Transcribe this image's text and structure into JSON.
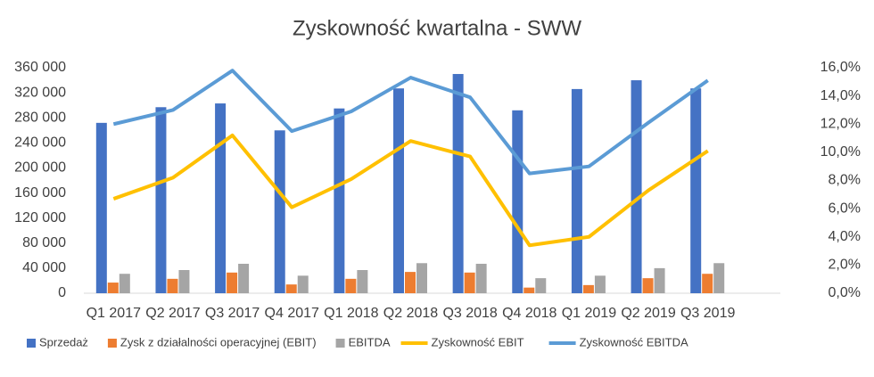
{
  "chart_data": {
    "type": "bar_line",
    "title": "Zyskowność kwartalna - SWW",
    "categories": [
      "Q1 2017",
      "Q2 2017",
      "Q3 2017",
      "Q4 2017",
      "Q1 2018",
      "Q2 2018",
      "Q3 2018",
      "Q4 2018",
      "Q1 2019",
      "Q2 2019",
      "Q3 2019"
    ],
    "series": [
      {
        "name": "Sprzedaż",
        "type": "bar",
        "color": "#4472c4",
        "values": [
          272000,
          297000,
          303000,
          260000,
          295000,
          327000,
          350000,
          292000,
          326000,
          340000,
          327000
        ]
      },
      {
        "name": "Zysk z działalności operacyjnej (EBIT)",
        "type": "bar",
        "color": "#ed7d31",
        "values": [
          17000,
          23000,
          33000,
          14000,
          23000,
          34000,
          33000,
          9000,
          13000,
          24000,
          31000
        ]
      },
      {
        "name": "EBITDA",
        "type": "bar",
        "color": "#a5a5a5",
        "values": [
          31000,
          37000,
          47000,
          28000,
          37000,
          48000,
          47000,
          24000,
          28000,
          40000,
          48000
        ]
      },
      {
        "name": "Zyskowność EBIT",
        "type": "line",
        "axis": "y2",
        "color": "#ffc000",
        "values": [
          6.7,
          8.2,
          11.2,
          6.1,
          8.1,
          10.8,
          9.7,
          3.4,
          4.0,
          7.3,
          10.1
        ]
      },
      {
        "name": "Zyskowność EBITDA",
        "type": "line",
        "axis": "y2",
        "color": "#5b9bd5",
        "values": [
          12.0,
          13.0,
          15.8,
          11.5,
          12.9,
          15.3,
          13.9,
          8.5,
          9.0,
          12.1,
          15.1
        ]
      }
    ],
    "ylim": [
      0,
      360000
    ],
    "yticks": [
      0,
      {
        "value": 40000,
        "label": "40 000"
      },
      {
        "value": 80000,
        "label": "80 000"
      },
      {
        "value": 120000,
        "label": "120 000"
      },
      {
        "value": 160000,
        "label": "160 000"
      },
      {
        "value": 200000,
        "label": "200 000"
      },
      {
        "value": 240000,
        "label": "240 000"
      },
      {
        "value": 280000,
        "label": "280 000"
      },
      {
        "value": 320000,
        "label": "320 000"
      },
      {
        "value": 360000,
        "label": "360 000"
      }
    ],
    "y2lim": [
      0,
      16
    ],
    "y2ticks": [
      {
        "value": 0,
        "label": "0,0%"
      },
      {
        "value": 2,
        "label": "2,0%"
      },
      {
        "value": 4,
        "label": "4,0%"
      },
      {
        "value": 6,
        "label": "6,0%"
      },
      {
        "value": 8,
        "label": "8,0%"
      },
      {
        "value": 10,
        "label": "10,0%"
      },
      {
        "value": 12,
        "label": "12,0%"
      },
      {
        "value": 14,
        "label": "14,0%"
      },
      {
        "value": 16,
        "label": "16,0%"
      }
    ],
    "legend": "bottom"
  }
}
